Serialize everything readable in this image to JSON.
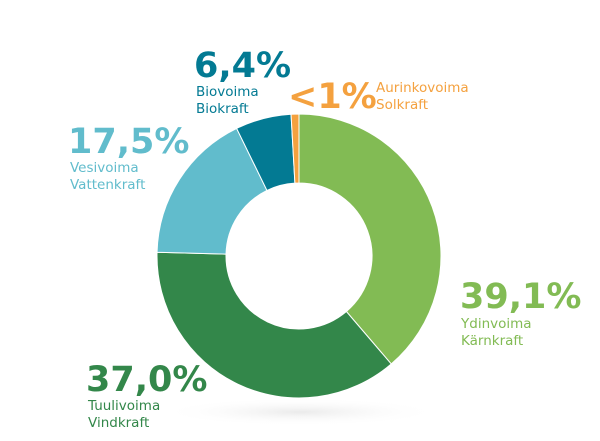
{
  "chart_data": {
    "type": "pie",
    "variant": "donut",
    "slices": [
      {
        "value_label": "39,1%",
        "value": 39.1,
        "label_fi": "Ydinvoima",
        "label_sv": "Kärnkraft",
        "color": "#82bb54"
      },
      {
        "value_label": "37,0%",
        "value": 37.0,
        "label_fi": "Tuulivoima",
        "label_sv": "Vindkraft",
        "color": "#33874a"
      },
      {
        "value_label": "17,5%",
        "value": 17.5,
        "label_fi": "Vesivoima",
        "label_sv": "Vattenkraft",
        "color": "#61bccc"
      },
      {
        "value_label": "6,4%",
        "value": 6.4,
        "label_fi": "Biovoima",
        "label_sv": "Biokraft",
        "color": "#037a93"
      },
      {
        "value_label": "<1%",
        "value": 0.9,
        "label_fi": "Aurinkovoima",
        "label_sv": "Solkraft",
        "color": "#f4a13f"
      }
    ]
  }
}
